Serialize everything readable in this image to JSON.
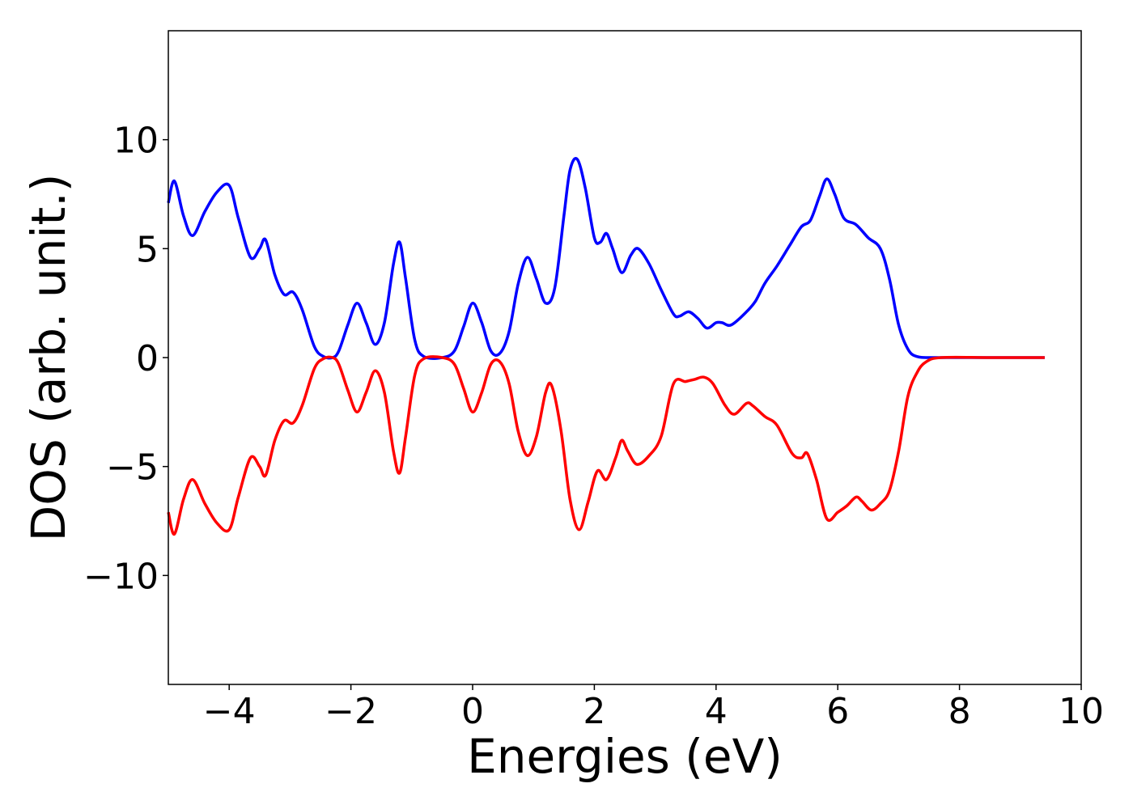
{
  "chart_data": {
    "type": "line",
    "title": "",
    "xlabel": "Energies (eV)",
    "ylabel": "DOS (arb. unit.)",
    "xlim": [
      -5,
      10
    ],
    "ylim": [
      -15,
      15
    ],
    "x_ticks": [
      -4,
      -2,
      0,
      2,
      4,
      6,
      8,
      10
    ],
    "x_tick_labels": [
      "−4",
      "−2",
      "0",
      "2",
      "4",
      "6",
      "8",
      "10"
    ],
    "y_ticks": [
      10,
      5,
      0,
      -5,
      -10
    ],
    "y_tick_labels": [
      "10",
      "5",
      "0",
      "−5",
      "−10"
    ],
    "grid": false,
    "legend": "none",
    "series": [
      {
        "color": "#0000ff",
        "points": [
          [
            -5.0,
            7.1
          ],
          [
            -4.9,
            8.1
          ],
          [
            -4.75,
            6.5
          ],
          [
            -4.6,
            5.6
          ],
          [
            -4.4,
            6.7
          ],
          [
            -4.2,
            7.6
          ],
          [
            -4.0,
            7.9
          ],
          [
            -3.85,
            6.4
          ],
          [
            -3.65,
            4.6
          ],
          [
            -3.5,
            5.0
          ],
          [
            -3.4,
            5.4
          ],
          [
            -3.25,
            3.8
          ],
          [
            -3.1,
            2.9
          ],
          [
            -2.95,
            3.0
          ],
          [
            -2.8,
            2.2
          ],
          [
            -2.6,
            0.5
          ],
          [
            -2.45,
            0.05
          ],
          [
            -2.3,
            0.0
          ],
          [
            -2.2,
            0.3
          ],
          [
            -2.05,
            1.5
          ],
          [
            -1.9,
            2.5
          ],
          [
            -1.75,
            1.6
          ],
          [
            -1.6,
            0.6
          ],
          [
            -1.45,
            1.6
          ],
          [
            -1.3,
            4.3
          ],
          [
            -1.2,
            5.3
          ],
          [
            -1.1,
            3.6
          ],
          [
            -0.95,
            0.8
          ],
          [
            -0.8,
            0.05
          ],
          [
            -0.5,
            0.0
          ],
          [
            -0.3,
            0.3
          ],
          [
            -0.15,
            1.4
          ],
          [
            0.0,
            2.5
          ],
          [
            0.15,
            1.6
          ],
          [
            0.3,
            0.3
          ],
          [
            0.45,
            0.2
          ],
          [
            0.6,
            1.2
          ],
          [
            0.75,
            3.4
          ],
          [
            0.9,
            4.6
          ],
          [
            1.05,
            3.6
          ],
          [
            1.2,
            2.5
          ],
          [
            1.35,
            3.2
          ],
          [
            1.5,
            6.5
          ],
          [
            1.6,
            8.6
          ],
          [
            1.72,
            9.1
          ],
          [
            1.85,
            7.8
          ],
          [
            2.0,
            5.5
          ],
          [
            2.1,
            5.3
          ],
          [
            2.2,
            5.7
          ],
          [
            2.3,
            5.0
          ],
          [
            2.45,
            3.9
          ],
          [
            2.6,
            4.7
          ],
          [
            2.72,
            5.0
          ],
          [
            2.9,
            4.3
          ],
          [
            3.1,
            3.1
          ],
          [
            3.3,
            2.0
          ],
          [
            3.4,
            1.9
          ],
          [
            3.55,
            2.1
          ],
          [
            3.7,
            1.8
          ],
          [
            3.85,
            1.35
          ],
          [
            4.0,
            1.6
          ],
          [
            4.1,
            1.6
          ],
          [
            4.25,
            1.5
          ],
          [
            4.5,
            2.1
          ],
          [
            4.65,
            2.6
          ],
          [
            4.8,
            3.4
          ],
          [
            5.0,
            4.2
          ],
          [
            5.2,
            5.1
          ],
          [
            5.4,
            6.0
          ],
          [
            5.55,
            6.3
          ],
          [
            5.7,
            7.4
          ],
          [
            5.82,
            8.2
          ],
          [
            5.95,
            7.5
          ],
          [
            6.1,
            6.4
          ],
          [
            6.3,
            6.1
          ],
          [
            6.5,
            5.5
          ],
          [
            6.7,
            5.0
          ],
          [
            6.85,
            3.6
          ],
          [
            7.0,
            1.5
          ],
          [
            7.15,
            0.4
          ],
          [
            7.3,
            0.05
          ],
          [
            7.6,
            0.0
          ],
          [
            8.5,
            0.0
          ],
          [
            9.4,
            0.0
          ]
        ]
      },
      {
        "color": "#ff0000",
        "points": [
          [
            -5.0,
            -7.1
          ],
          [
            -4.9,
            -8.1
          ],
          [
            -4.75,
            -6.5
          ],
          [
            -4.6,
            -5.6
          ],
          [
            -4.4,
            -6.7
          ],
          [
            -4.2,
            -7.6
          ],
          [
            -4.0,
            -7.9
          ],
          [
            -3.85,
            -6.4
          ],
          [
            -3.65,
            -4.6
          ],
          [
            -3.5,
            -5.0
          ],
          [
            -3.4,
            -5.4
          ],
          [
            -3.25,
            -3.8
          ],
          [
            -3.1,
            -2.9
          ],
          [
            -2.95,
            -3.0
          ],
          [
            -2.8,
            -2.2
          ],
          [
            -2.6,
            -0.5
          ],
          [
            -2.45,
            -0.05
          ],
          [
            -2.3,
            0.0
          ],
          [
            -2.2,
            -0.3
          ],
          [
            -2.05,
            -1.5
          ],
          [
            -1.9,
            -2.5
          ],
          [
            -1.75,
            -1.6
          ],
          [
            -1.6,
            -0.6
          ],
          [
            -1.45,
            -1.6
          ],
          [
            -1.3,
            -4.3
          ],
          [
            -1.2,
            -5.3
          ],
          [
            -1.1,
            -3.6
          ],
          [
            -0.95,
            -0.8
          ],
          [
            -0.8,
            -0.05
          ],
          [
            -0.5,
            0.0
          ],
          [
            -0.3,
            -0.3
          ],
          [
            -0.15,
            -1.4
          ],
          [
            0.0,
            -2.5
          ],
          [
            0.15,
            -1.6
          ],
          [
            0.3,
            -0.3
          ],
          [
            0.45,
            -0.2
          ],
          [
            0.6,
            -1.2
          ],
          [
            0.75,
            -3.4
          ],
          [
            0.9,
            -4.5
          ],
          [
            1.05,
            -3.6
          ],
          [
            1.2,
            -1.6
          ],
          [
            1.3,
            -1.3
          ],
          [
            1.45,
            -3.3
          ],
          [
            1.6,
            -6.5
          ],
          [
            1.75,
            -7.9
          ],
          [
            1.9,
            -6.6
          ],
          [
            2.05,
            -5.2
          ],
          [
            2.2,
            -5.6
          ],
          [
            2.35,
            -4.6
          ],
          [
            2.45,
            -3.8
          ],
          [
            2.55,
            -4.3
          ],
          [
            2.7,
            -4.9
          ],
          [
            2.9,
            -4.5
          ],
          [
            3.1,
            -3.6
          ],
          [
            3.3,
            -1.2
          ],
          [
            3.5,
            -1.1
          ],
          [
            3.65,
            -1.0
          ],
          [
            3.8,
            -0.9
          ],
          [
            3.95,
            -1.2
          ],
          [
            4.15,
            -2.2
          ],
          [
            4.3,
            -2.6
          ],
          [
            4.5,
            -2.1
          ],
          [
            4.6,
            -2.2
          ],
          [
            4.8,
            -2.7
          ],
          [
            5.0,
            -3.1
          ],
          [
            5.25,
            -4.4
          ],
          [
            5.4,
            -4.6
          ],
          [
            5.5,
            -4.4
          ],
          [
            5.65,
            -5.6
          ],
          [
            5.82,
            -7.4
          ],
          [
            6.0,
            -7.1
          ],
          [
            6.15,
            -6.8
          ],
          [
            6.3,
            -6.4
          ],
          [
            6.4,
            -6.6
          ],
          [
            6.55,
            -7.0
          ],
          [
            6.7,
            -6.7
          ],
          [
            6.85,
            -6.1
          ],
          [
            7.0,
            -4.3
          ],
          [
            7.15,
            -1.8
          ],
          [
            7.3,
            -0.7
          ],
          [
            7.45,
            -0.2
          ],
          [
            7.7,
            0.0
          ],
          [
            8.5,
            0.0
          ],
          [
            9.4,
            0.0
          ]
        ]
      }
    ]
  }
}
